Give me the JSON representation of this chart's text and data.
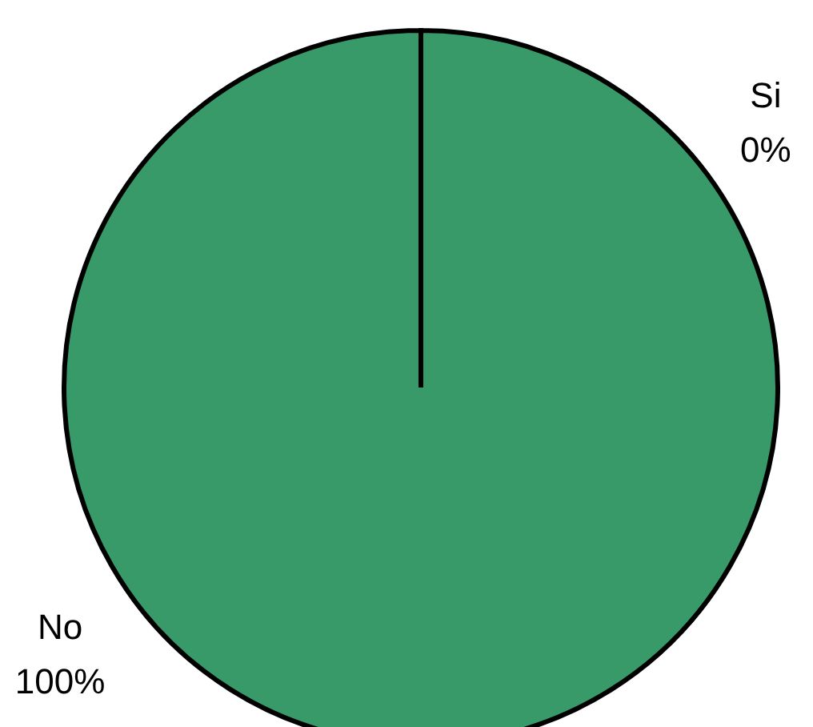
{
  "chart_data": {
    "type": "pie",
    "categories": [
      "Si",
      "No"
    ],
    "values": [
      0,
      100
    ],
    "colors": [
      "#389a68",
      "#389a68"
    ],
    "value_labels": [
      "0%",
      "100%"
    ]
  }
}
